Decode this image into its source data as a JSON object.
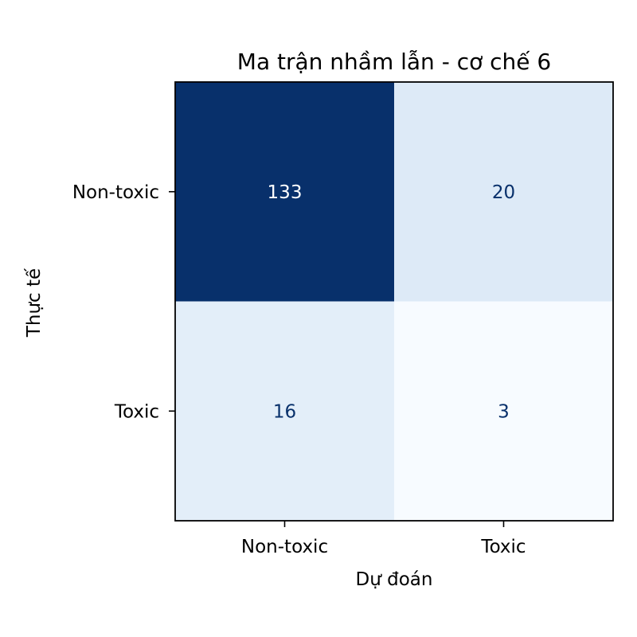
{
  "chart_data": {
    "type": "heatmap",
    "title": "Ma trận nhầm lẫn - cơ chế 6",
    "xlabel": "Dự đoán",
    "ylabel": "Thực tế",
    "x_categories": [
      "Non-toxic",
      "Toxic"
    ],
    "y_categories": [
      "Non-toxic",
      "Toxic"
    ],
    "values": [
      [
        133,
        20
      ],
      [
        16,
        3
      ]
    ],
    "colormap": "Blues",
    "colors": {
      "low": "#f7fbff",
      "high": "#08306b",
      "text_on_dark": "#ffffff",
      "text_on_light": "#08306b"
    },
    "grid": false,
    "colorbar": false
  }
}
